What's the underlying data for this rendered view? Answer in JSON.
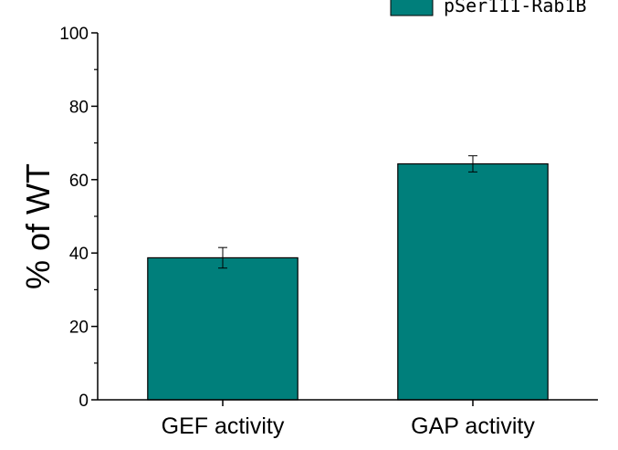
{
  "chart_data": {
    "type": "bar",
    "categories": [
      "GEF activity",
      "GAP activity"
    ],
    "series": [
      {
        "name": "pSer111-Rab1B",
        "values": [
          38.7,
          64.3
        ],
        "errors": [
          2.8,
          2.2
        ]
      }
    ],
    "ylabel": "% of WT",
    "ylim": [
      0,
      100
    ],
    "yticks": [
      "0",
      "20",
      "40",
      "60",
      "80",
      "100"
    ],
    "bar_color": "#007f7b",
    "legend_position": "top-right"
  }
}
